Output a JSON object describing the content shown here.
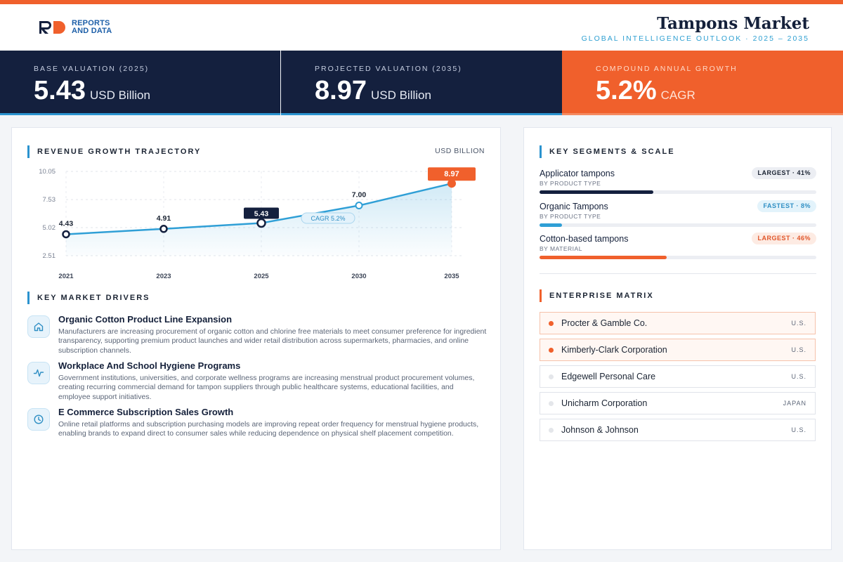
{
  "header": {
    "logo_line1": "REPORTS",
    "logo_line2": "AND DATA",
    "title": "Tampons Market",
    "subtitle": "GLOBAL INTELLIGENCE OUTLOOK  ·  2025 – 2035"
  },
  "kpis": [
    {
      "label": "BASE VALUATION (2025)",
      "value": "5.43",
      "unit": "USD Billion"
    },
    {
      "label": "PROJECTED VALUATION (2035)",
      "value": "8.97",
      "unit": "USD Billion"
    },
    {
      "label": "COMPOUND ANNUAL GROWTH",
      "value": "5.2%",
      "unit": "CAGR"
    }
  ],
  "chart_section": {
    "title": "REVENUE GROWTH TRAJECTORY",
    "unit": "USD BILLION"
  },
  "chart_data": {
    "type": "area",
    "categories": [
      "2021",
      "2023",
      "2025",
      "2030",
      "2035"
    ],
    "values": [
      4.43,
      4.91,
      5.43,
      7.0,
      8.97
    ],
    "value_labels": [
      "4.43",
      "4.91",
      "5.43",
      "7.00",
      "8.97"
    ],
    "y_ticks": [
      "2.51",
      "5.02",
      "7.53",
      "10.05"
    ],
    "ylim": [
      2.51,
      10.05
    ],
    "grid": true,
    "annotation": "CAGR 5.2%",
    "highlight_indices": [
      2,
      4
    ],
    "colors": {
      "line": "#2f9fd6",
      "highlight_end": "#f0602c",
      "highlight_mid": "#14203e"
    }
  },
  "drivers_section": {
    "title": "KEY MARKET DRIVERS",
    "items": [
      {
        "icon": "home-icon",
        "title": "Organic Cotton Product Line Expansion",
        "desc": "Manufacturers are increasing procurement of organic cotton and chlorine free materials to meet consumer preference for ingredient transparency, supporting premium product launches and wider retail distribution across supermarkets, pharmacies, and online subscription channels."
      },
      {
        "icon": "pulse-icon",
        "title": "Workplace And School Hygiene Programs",
        "desc": "Government institutions, universities, and corporate wellness programs are increasing menstrual product procurement volumes, creating recurring commercial demand for tampon suppliers through public healthcare systems, educational facilities, and employee support initiatives."
      },
      {
        "icon": "clock-icon",
        "title": "E Commerce Subscription Sales Growth",
        "desc": "Online retail platforms and subscription purchasing models are improving repeat order frequency for menstrual hygiene products, enabling brands to expand direct to consumer sales while reducing dependence on physical shelf placement competition."
      }
    ]
  },
  "segments_section": {
    "title": "KEY SEGMENTS & SCALE",
    "items": [
      {
        "name": "Applicator tampons",
        "category": "BY PRODUCT TYPE",
        "badge": "LARGEST · 41%",
        "share": 41,
        "color": "#14203e",
        "badge_bg": "#eceef3",
        "badge_fg": "#1b2433"
      },
      {
        "name": "Organic Tampons",
        "category": "BY PRODUCT TYPE",
        "badge": "FASTEST · 8%",
        "share": 8,
        "color": "#2f9fd6",
        "badge_bg": "#e3f3fb",
        "badge_fg": "#2f8fc4"
      },
      {
        "name": "Cotton-based tampons",
        "category": "BY MATERIAL",
        "badge": "LARGEST · 46%",
        "share": 46,
        "color": "#f0602c",
        "badge_bg": "#fdebe3",
        "badge_fg": "#e0562a"
      }
    ]
  },
  "enterprise_section": {
    "title": "ENTERPRISE MATRIX",
    "items": [
      {
        "name": "Procter & Gamble Co.",
        "country": "U.S.",
        "highlight": true
      },
      {
        "name": "Kimberly-Clark Corporation",
        "country": "U.S.",
        "highlight": true
      },
      {
        "name": "Edgewell Personal Care",
        "country": "U.S.",
        "highlight": false
      },
      {
        "name": "Unicharm Corporation",
        "country": "JAPAN",
        "highlight": false
      },
      {
        "name": "Johnson & Johnson",
        "country": "U.S.",
        "highlight": false
      }
    ]
  }
}
